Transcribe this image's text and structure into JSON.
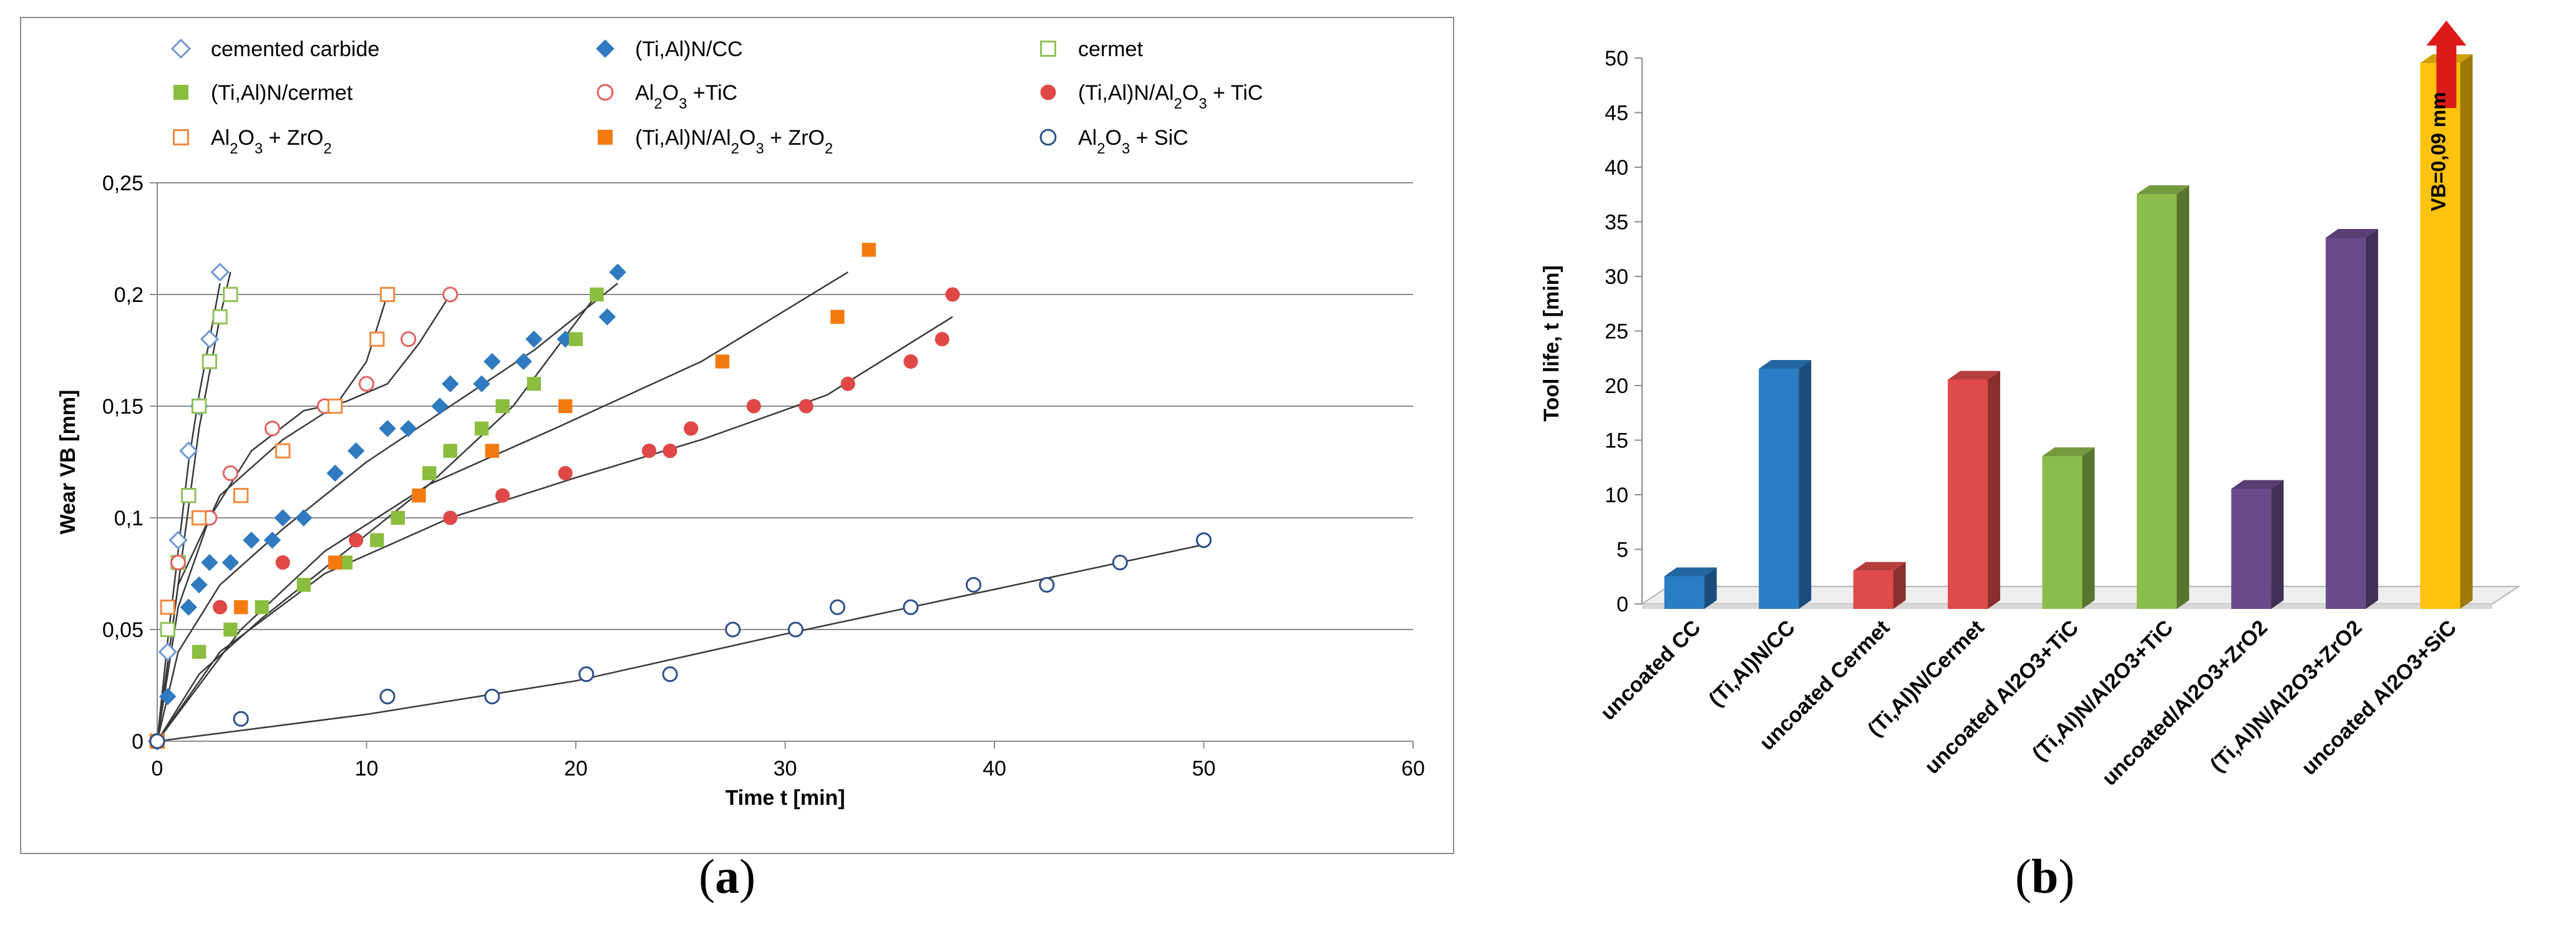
{
  "chart_data": [
    {
      "type": "scatter",
      "panel_label": "a",
      "xlabel": "Time t [min]",
      "ylabel": "Wear VB [mm]",
      "xlim": [
        0,
        60
      ],
      "ylim": [
        0,
        0.25
      ],
      "x_ticks": [
        "0",
        "10",
        "20",
        "30",
        "40",
        "50",
        "60"
      ],
      "y_ticks": [
        "0",
        "0,05",
        "0,1",
        "0,15",
        "0,2",
        "0,25"
      ],
      "grid": true,
      "legend_position": "top",
      "series": [
        {
          "name": "cemented carbide",
          "label_parts": [
            {
              "t": "cemented carbide"
            }
          ],
          "marker": "diamond",
          "filled": false,
          "color": "#6f98d0",
          "x": [
            0,
            0.5,
            1,
            1.5,
            2,
            2.5,
            3
          ],
          "y": [
            0,
            0.04,
            0.09,
            0.13,
            0.15,
            0.18,
            0.21
          ],
          "trend": [
            [
              0,
              0
            ],
            [
              0.5,
              0.045
            ],
            [
              1,
              0.085
            ],
            [
              1.5,
              0.125
            ],
            [
              2,
              0.155
            ],
            [
              2.5,
              0.18
            ],
            [
              3,
              0.205
            ]
          ]
        },
        {
          "name": "(Ti,Al)N/CC",
          "label_parts": [
            {
              "t": "(Ti,Al)N/CC"
            }
          ],
          "marker": "diamond",
          "filled": true,
          "color": "#2f7ac0",
          "x": [
            0,
            0.5,
            1.5,
            2,
            2.5,
            3.5,
            4.5,
            5.5,
            6,
            7,
            8.5,
            9.5,
            11,
            12,
            13.5,
            14,
            15.5,
            16,
            17.5,
            18,
            19.5,
            21.5,
            22
          ],
          "y": [
            0,
            0.02,
            0.06,
            0.07,
            0.08,
            0.08,
            0.09,
            0.09,
            0.1,
            0.1,
            0.12,
            0.13,
            0.14,
            0.14,
            0.15,
            0.16,
            0.16,
            0.17,
            0.17,
            0.18,
            0.18,
            0.19,
            0.21
          ],
          "trend": [
            [
              0,
              0
            ],
            [
              1,
              0.04
            ],
            [
              3,
              0.07
            ],
            [
              6,
              0.095
            ],
            [
              10,
              0.125
            ],
            [
              14,
              0.15
            ],
            [
              18,
              0.175
            ],
            [
              22,
              0.205
            ]
          ]
        },
        {
          "name": "cermet",
          "label_parts": [
            {
              "t": "cermet"
            }
          ],
          "marker": "square",
          "filled": false,
          "color": "#8fc35a",
          "x": [
            0,
            0.5,
            1,
            1.5,
            2,
            2.5,
            3,
            3.5
          ],
          "y": [
            0,
            0.05,
            0.08,
            0.11,
            0.15,
            0.17,
            0.19,
            0.2
          ],
          "trend": [
            [
              0,
              0
            ],
            [
              1,
              0.07
            ],
            [
              2,
              0.14
            ],
            [
              3,
              0.19
            ],
            [
              3.5,
              0.21
            ]
          ]
        },
        {
          "name": "(Ti,Al)N/cermet",
          "label_parts": [
            {
              "t": "(Ti,Al)N/cermet"
            }
          ],
          "marker": "square",
          "filled": true,
          "color": "#8bbd3f",
          "x": [
            0,
            2,
            3.5,
            5,
            7,
            9,
            10.5,
            11.5,
            13,
            14,
            15.5,
            16.5,
            18,
            20,
            21
          ],
          "y": [
            0,
            0.04,
            0.05,
            0.06,
            0.07,
            0.08,
            0.09,
            0.1,
            0.12,
            0.13,
            0.14,
            0.15,
            0.16,
            0.18,
            0.2
          ],
          "trend": [
            [
              0,
              0
            ],
            [
              2,
              0.03
            ],
            [
              5,
              0.055
            ],
            [
              9,
              0.085
            ],
            [
              13,
              0.115
            ],
            [
              17,
              0.15
            ],
            [
              21,
              0.2
            ]
          ]
        },
        {
          "name": "Al2O3 + TiC",
          "label_parts": [
            {
              "t": "Al"
            },
            {
              "t": "2",
              "sub": true
            },
            {
              "t": "O"
            },
            {
              "t": "3",
              "sub": true
            },
            {
              "t": "  +TiC"
            }
          ],
          "marker": "circle",
          "filled": false,
          "color": "#e66060",
          "x": [
            0,
            1,
            2.5,
            3.5,
            5.5,
            8,
            10,
            12,
            14
          ],
          "y": [
            0,
            0.08,
            0.1,
            0.12,
            0.14,
            0.15,
            0.16,
            0.18,
            0.2
          ],
          "trend": [
            [
              0,
              0
            ],
            [
              1,
              0.06
            ],
            [
              2.5,
              0.1
            ],
            [
              4.5,
              0.13
            ],
            [
              7,
              0.148
            ],
            [
              9,
              0.152
            ],
            [
              11,
              0.16
            ],
            [
              12.5,
              0.178
            ],
            [
              14,
              0.2
            ]
          ]
        },
        {
          "name": "(Ti,Al)N/Al2O3 + TiC",
          "label_parts": [
            {
              "t": "(Ti,Al)N/Al"
            },
            {
              "t": "2",
              "sub": true
            },
            {
              "t": "O"
            },
            {
              "t": "3",
              "sub": true
            },
            {
              "t": "  + TiC"
            }
          ],
          "marker": "circle",
          "filled": true,
          "color": "#e04848",
          "x": [
            0,
            3,
            6,
            9.5,
            14,
            16.5,
            19.5,
            23.5,
            24.5,
            25.5,
            28.5,
            31,
            33,
            36,
            37.5,
            38
          ],
          "y": [
            0,
            0.06,
            0.08,
            0.09,
            0.1,
            0.11,
            0.12,
            0.13,
            0.13,
            0.14,
            0.15,
            0.15,
            0.16,
            0.17,
            0.18,
            0.2
          ],
          "trend": [
            [
              0,
              0
            ],
            [
              3,
              0.04
            ],
            [
              8,
              0.075
            ],
            [
              14,
              0.1
            ],
            [
              20,
              0.118
            ],
            [
              26,
              0.135
            ],
            [
              32,
              0.155
            ],
            [
              38,
              0.19
            ]
          ]
        },
        {
          "name": "Al2O3 + ZrO2",
          "label_parts": [
            {
              "t": "Al"
            },
            {
              "t": "2",
              "sub": true
            },
            {
              "t": "O"
            },
            {
              "t": "3",
              "sub": true
            },
            {
              "t": " + ZrO"
            },
            {
              "t": "2",
              "sub": true
            }
          ],
          "marker": "square",
          "filled": false,
          "color": "#f08a3c",
          "x": [
            0,
            0.5,
            2,
            4,
            6,
            8.5,
            10.5,
            11
          ],
          "y": [
            0,
            0.06,
            0.1,
            0.11,
            0.13,
            0.15,
            0.18,
            0.2
          ],
          "trend": [
            [
              0,
              0
            ],
            [
              1,
              0.07
            ],
            [
              3,
              0.11
            ],
            [
              6,
              0.135
            ],
            [
              8.5,
              0.15
            ],
            [
              10,
              0.17
            ],
            [
              11,
              0.2
            ]
          ]
        },
        {
          "name": "(Ti,Al)N/Al2O3 + ZrO2",
          "label_parts": [
            {
              "t": "(Ti,Al)N/Al"
            },
            {
              "t": "2",
              "sub": true
            },
            {
              "t": "O"
            },
            {
              "t": "3",
              "sub": true
            },
            {
              "t": " + ZrO"
            },
            {
              "t": "2",
              "sub": true
            }
          ],
          "marker": "square",
          "filled": true,
          "color": "#f47a10",
          "x": [
            0,
            4,
            8.5,
            12.5,
            16,
            19.5,
            27,
            32.5,
            34
          ],
          "y": [
            0,
            0.06,
            0.08,
            0.11,
            0.13,
            0.15,
            0.17,
            0.19,
            0.22
          ],
          "trend": [
            [
              0,
              0
            ],
            [
              4,
              0.05
            ],
            [
              8,
              0.085
            ],
            [
              13,
              0.115
            ],
            [
              19,
              0.14
            ],
            [
              26,
              0.17
            ],
            [
              33,
              0.21
            ]
          ]
        },
        {
          "name": "Al2O3 + SiC",
          "label_parts": [
            {
              "t": "Al"
            },
            {
              "t": "2",
              "sub": true
            },
            {
              "t": "O"
            },
            {
              "t": "3",
              "sub": true
            },
            {
              "t": "  + SiC"
            }
          ],
          "marker": "circle",
          "filled": false,
          "color": "#2c4f8a",
          "x": [
            0,
            4,
            11,
            16,
            20.5,
            24.5,
            27.5,
            30.5,
            32.5,
            36,
            39,
            42.5,
            46,
            50
          ],
          "y": [
            0,
            0.01,
            0.02,
            0.02,
            0.03,
            0.03,
            0.05,
            0.05,
            0.06,
            0.06,
            0.07,
            0.07,
            0.08,
            0.09
          ],
          "trend": [
            [
              0,
              0
            ],
            [
              10,
              0.012
            ],
            [
              20,
              0.027
            ],
            [
              30,
              0.048
            ],
            [
              40,
              0.068
            ],
            [
              50,
              0.088
            ]
          ]
        }
      ]
    },
    {
      "type": "bar",
      "panel_label": "b",
      "ylabel": "Tool life, t [min]",
      "ylim": [
        0,
        50
      ],
      "y_ticks": [
        "0",
        "5",
        "10",
        "15",
        "20",
        "25",
        "30",
        "35",
        "40",
        "45",
        "50"
      ],
      "categories": [
        "uncoated CC",
        "(Ti,Al)N/CC",
        "uncoated Cermet",
        "(Ti,Al)N/Cermet",
        "uncoated Al2O3+TiC",
        "(Ti,Al)N/Al2O3+TiC",
        "uncoated/Al2O3+ZrO2",
        "(Ti,Al)N/Al2O3+ZrO2",
        "uncoated Al2O3+SiC"
      ],
      "values": [
        3,
        22,
        3.5,
        21,
        14,
        38,
        11,
        34,
        50
      ],
      "colors": [
        "#2a7cc4",
        "#2a7cc4",
        "#e04a4a",
        "#e04a4a",
        "#8cbd4c",
        "#8cbd4c",
        "#6a4a8a",
        "#6a4a8a",
        "#ffc20e"
      ],
      "annotation": "VB=0,09 mm"
    }
  ]
}
